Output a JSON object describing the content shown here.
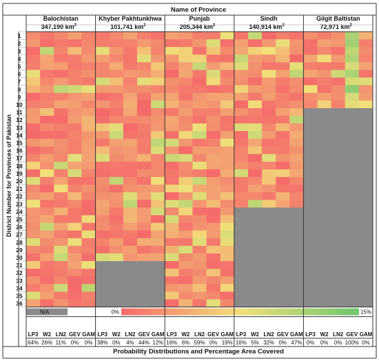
{
  "chart_data": {
    "type": "heatmap",
    "title": "Name of Province",
    "xlabel": "Probability Distributions and Percentage Area Covered",
    "ylabel": "District Number for Provinces of Pakistan",
    "provinces": [
      {
        "name": "Balochistan",
        "area": "347,190 km",
        "area_sup": "2",
        "districts": 36,
        "distributions": [
          "LP3",
          "W2",
          "LN2",
          "GEV",
          "GAM"
        ],
        "percentages": [
          "64%",
          "26%",
          "11%",
          "0%",
          "0%"
        ]
      },
      {
        "name": "Khyber Pakhtunkhwa",
        "area": "101,741 km",
        "area_sup": "2",
        "districts": 30,
        "distributions": [
          "LP3",
          "W2",
          "LN2",
          "GEV",
          "GAM"
        ],
        "percentages": [
          "38%",
          "0%",
          "4%",
          "44%",
          "12%"
        ]
      },
      {
        "name": "Punjab",
        "area": "205,344 km",
        "area_sup": "2",
        "districts": 36,
        "distributions": [
          "LP3",
          "W2",
          "LN2",
          "GEV",
          "GAM"
        ],
        "percentages": [
          "16%",
          "6%",
          "59%",
          "0%",
          "19%"
        ]
      },
      {
        "name": "Sindh",
        "area": "140,914 km",
        "area_sup": "2",
        "districts": 23,
        "distributions": [
          "LP3",
          "W2",
          "LN2",
          "GEV",
          "GAM"
        ],
        "percentages": [
          "16%",
          "5%",
          "32%",
          "0%",
          "47%"
        ]
      },
      {
        "name": "Gilgit Baltistan",
        "area": "72,971 km",
        "area_sup": "2",
        "districts": 10,
        "distributions": [
          "LP3",
          "W2",
          "LN2",
          "GEV",
          "GAM"
        ],
        "percentages": [
          "0%",
          "0%",
          "0%",
          "100%",
          "0%"
        ]
      }
    ],
    "district_numbers": [
      "1",
      "2",
      "3",
      "4",
      "5",
      "6",
      "7",
      "8",
      "9",
      "10",
      "11",
      "12",
      "13",
      "14",
      "15",
      "16",
      "17",
      "18",
      "19",
      "20",
      "21",
      "22",
      "23",
      "24",
      "25",
      "26",
      "27",
      "28",
      "29",
      "30",
      "31",
      "32",
      "33",
      "34",
      "35",
      "36"
    ],
    "legend": {
      "na_label": "N/A",
      "min_label": "0%",
      "max_label": "15%"
    },
    "colors": {
      "na": "#8a8a8a",
      "low": "#f46a6a",
      "mid": "#f2e07a",
      "high": "#6fc56f"
    }
  }
}
